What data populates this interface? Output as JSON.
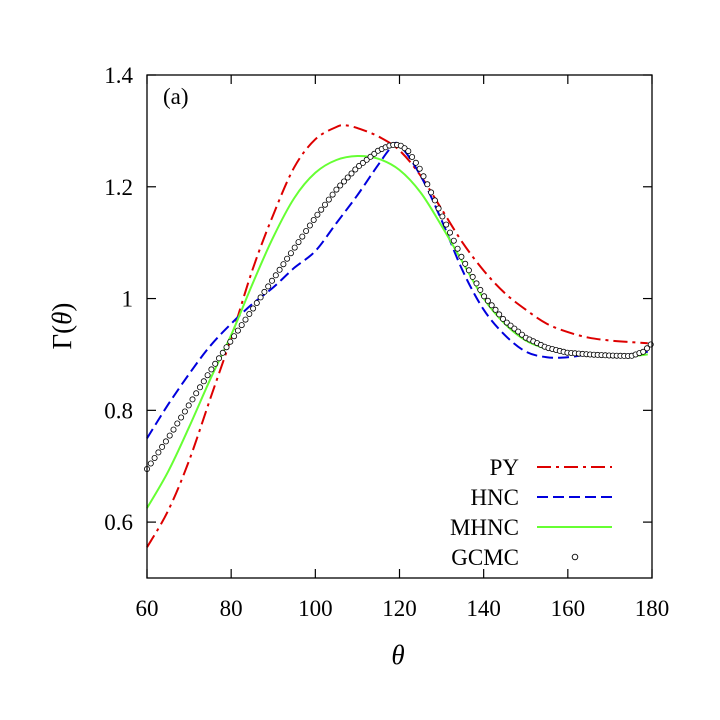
{
  "chart_data": {
    "type": "line",
    "panel_label": "(a)",
    "xlabel": "θ",
    "ylabel_prefix": "Γ(",
    "ylabel_var": "θ",
    "ylabel_suffix": ")",
    "xlim": [
      60,
      180
    ],
    "ylim": [
      0.5,
      1.4
    ],
    "x_ticks": [
      60,
      80,
      100,
      120,
      140,
      160,
      180
    ],
    "x_tick_labels": [
      "60",
      "80",
      "100",
      "120",
      "140",
      "160",
      "180"
    ],
    "y_ticks": [
      0.6,
      0.8,
      1.0,
      1.2,
      1.4
    ],
    "y_tick_labels": [
      "0.6",
      "0.8",
      "1",
      "1.2",
      "1.4"
    ],
    "grid": false,
    "legend_position": "bottom-right",
    "series": [
      {
        "name": "PY",
        "style": "dash-dot",
        "color": "#dd0000",
        "x": [
          60,
          65,
          70,
          75,
          80,
          85,
          90,
          95,
          100,
          105,
          107,
          110,
          115,
          120,
          125,
          130,
          135,
          140,
          145,
          150,
          155,
          160,
          165,
          170,
          175,
          179
        ],
        "y": [
          0.555,
          0.62,
          0.71,
          0.82,
          0.93,
          1.05,
          1.15,
          1.235,
          1.285,
          1.307,
          1.31,
          1.305,
          1.29,
          1.265,
          1.22,
          1.16,
          1.1,
          1.05,
          1.01,
          0.98,
          0.955,
          0.94,
          0.93,
          0.925,
          0.922,
          0.92
        ]
      },
      {
        "name": "HNC",
        "style": "dashed",
        "color": "#0000dd",
        "x": [
          60,
          65,
          70,
          75,
          80,
          85,
          90,
          95,
          100,
          105,
          110,
          115,
          118,
          120,
          125,
          130,
          135,
          140,
          145,
          150,
          155,
          160,
          165,
          170,
          175,
          179
        ],
        "y": [
          0.75,
          0.81,
          0.865,
          0.915,
          0.955,
          0.99,
          1.02,
          1.055,
          1.085,
          1.135,
          1.185,
          1.24,
          1.27,
          1.275,
          1.22,
          1.14,
          1.05,
          0.98,
          0.935,
          0.905,
          0.895,
          0.895,
          0.9,
          0.9,
          0.9,
          0.905
        ]
      },
      {
        "name": "MHNC",
        "style": "solid",
        "color": "#66ff33",
        "x": [
          60,
          65,
          70,
          75,
          80,
          85,
          90,
          95,
          100,
          105,
          110,
          115,
          120,
          125,
          130,
          135,
          140,
          145,
          150,
          155,
          160,
          165,
          170,
          175,
          179
        ],
        "y": [
          0.625,
          0.69,
          0.77,
          0.855,
          0.935,
          1.025,
          1.11,
          1.18,
          1.225,
          1.248,
          1.255,
          1.25,
          1.23,
          1.19,
          1.13,
          1.065,
          1.0,
          0.955,
          0.925,
          0.91,
          0.903,
          0.9,
          0.898,
          0.897,
          0.9
        ]
      },
      {
        "name": "GCMC",
        "style": "markers",
        "color": "#000000",
        "x": [
          60,
          65,
          70,
          75,
          80,
          85,
          90,
          95,
          100,
          105,
          110,
          115,
          118,
          120,
          122,
          125,
          130,
          135,
          140,
          145,
          150,
          155,
          160,
          165,
          170,
          175,
          178,
          180
        ],
        "y": [
          0.695,
          0.75,
          0.81,
          0.87,
          0.925,
          0.98,
          1.035,
          1.09,
          1.145,
          1.195,
          1.235,
          1.265,
          1.275,
          1.275,
          1.265,
          1.23,
          1.15,
          1.07,
          1.005,
          0.96,
          0.93,
          0.912,
          0.903,
          0.9,
          0.898,
          0.897,
          0.905,
          0.92
        ]
      }
    ]
  }
}
